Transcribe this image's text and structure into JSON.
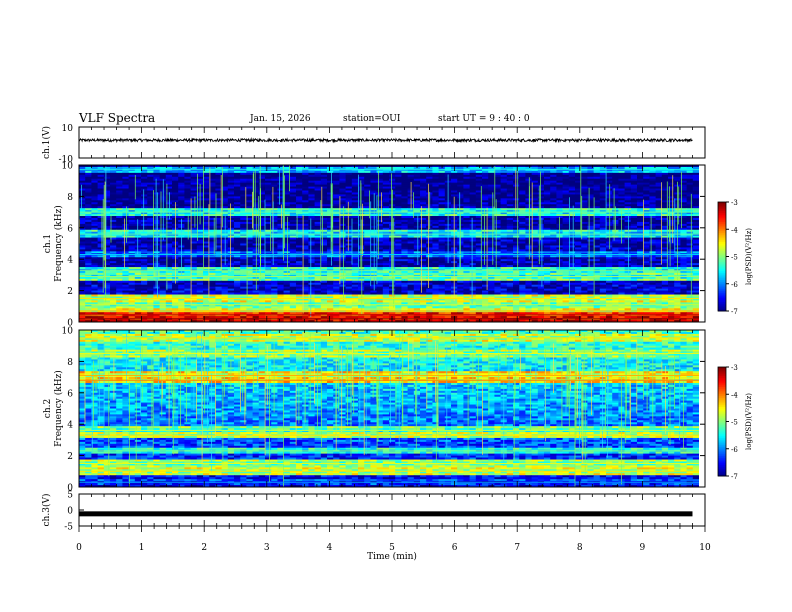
{
  "header": {
    "title": "VLF Spectra",
    "date": "Jan. 15, 2026",
    "station": "station=OUI",
    "start": "start  UT =   9 : 40 : 0"
  },
  "chart_data": [
    {
      "type": "line",
      "panel": "ch1-waveform",
      "ylabel": "ch.1(V)",
      "ylim": [
        -10,
        10
      ],
      "yticks": [
        "10",
        "-10"
      ],
      "x": [
        0,
        10
      ],
      "series": [
        {
          "values_approx_level": 1.5
        }
      ]
    },
    {
      "type": "heatmap",
      "panel": "ch1-spectrogram",
      "ylabel_top": "ch.1",
      "ylabel": "Frequency  (kHz)",
      "ylim": [
        0,
        10
      ],
      "yticks": [
        "0",
        "2",
        "4",
        "6",
        "8",
        "10"
      ],
      "xlim": [
        0,
        10
      ],
      "colorbar": {
        "label": "log(PSD)(V²/Hz)",
        "range": [
          -7,
          -3
        ],
        "ticks": [
          "-3",
          "-4",
          "-5",
          "-6",
          "-7"
        ]
      },
      "bands_khz": [
        {
          "f": 0.2,
          "level": -3.6
        },
        {
          "f": 0.45,
          "level": -3.8
        },
        {
          "f": 0.7,
          "level": -4.8
        },
        {
          "f": 1.1,
          "level": -5.3
        },
        {
          "f": 1.5,
          "level": -5.0
        },
        {
          "f": 2.9,
          "level": -5.5
        },
        {
          "f": 3.3,
          "level": -5.6
        },
        {
          "f": 4.3,
          "level": -6.3
        },
        {
          "f": 5.6,
          "level": -5.8
        },
        {
          "f": 7.0,
          "level": -5.7
        },
        {
          "f": 9.7,
          "level": -6.0
        }
      ]
    },
    {
      "type": "heatmap",
      "panel": "ch2-spectrogram",
      "ylabel_top": "ch.2",
      "ylabel": "Frequency  (kHz)",
      "ylim": [
        0,
        10
      ],
      "yticks": [
        "0",
        "2",
        "4",
        "6",
        "8",
        "10"
      ],
      "xlim": [
        0,
        10
      ],
      "colorbar": {
        "label": "log(PSD)(V²/Hz)",
        "range": [
          -7,
          -3
        ],
        "ticks": [
          "-3",
          "-4",
          "-5",
          "-6",
          "-7"
        ]
      },
      "bands_khz": [
        {
          "f": 0.3,
          "level": -6.5
        },
        {
          "f": 1.0,
          "level": -5.0
        },
        {
          "f": 1.5,
          "level": -5.2
        },
        {
          "f": 2.3,
          "level": -5.6
        },
        {
          "f": 3.3,
          "level": -5.0
        },
        {
          "f": 3.6,
          "level": -5.4
        },
        {
          "f": 6.8,
          "level": -4.6
        },
        {
          "f": 7.1,
          "level": -4.8
        },
        {
          "f": 8.5,
          "level": -5.2
        },
        {
          "f": 9.5,
          "level": -5.0
        }
      ]
    },
    {
      "type": "line",
      "panel": "ch3-waveform",
      "ylabel": "ch.3(V)",
      "ylim": [
        -5,
        5
      ],
      "yticks": [
        "5",
        "0",
        "-5"
      ],
      "xlabel": "Time  (min)",
      "xlim": [
        0,
        10
      ],
      "xticks": [
        "0",
        "1",
        "2",
        "3",
        "4",
        "5",
        "6",
        "7",
        "8",
        "9",
        "10"
      ],
      "series": [
        {
          "values_approx_level": -1.2
        }
      ]
    }
  ]
}
